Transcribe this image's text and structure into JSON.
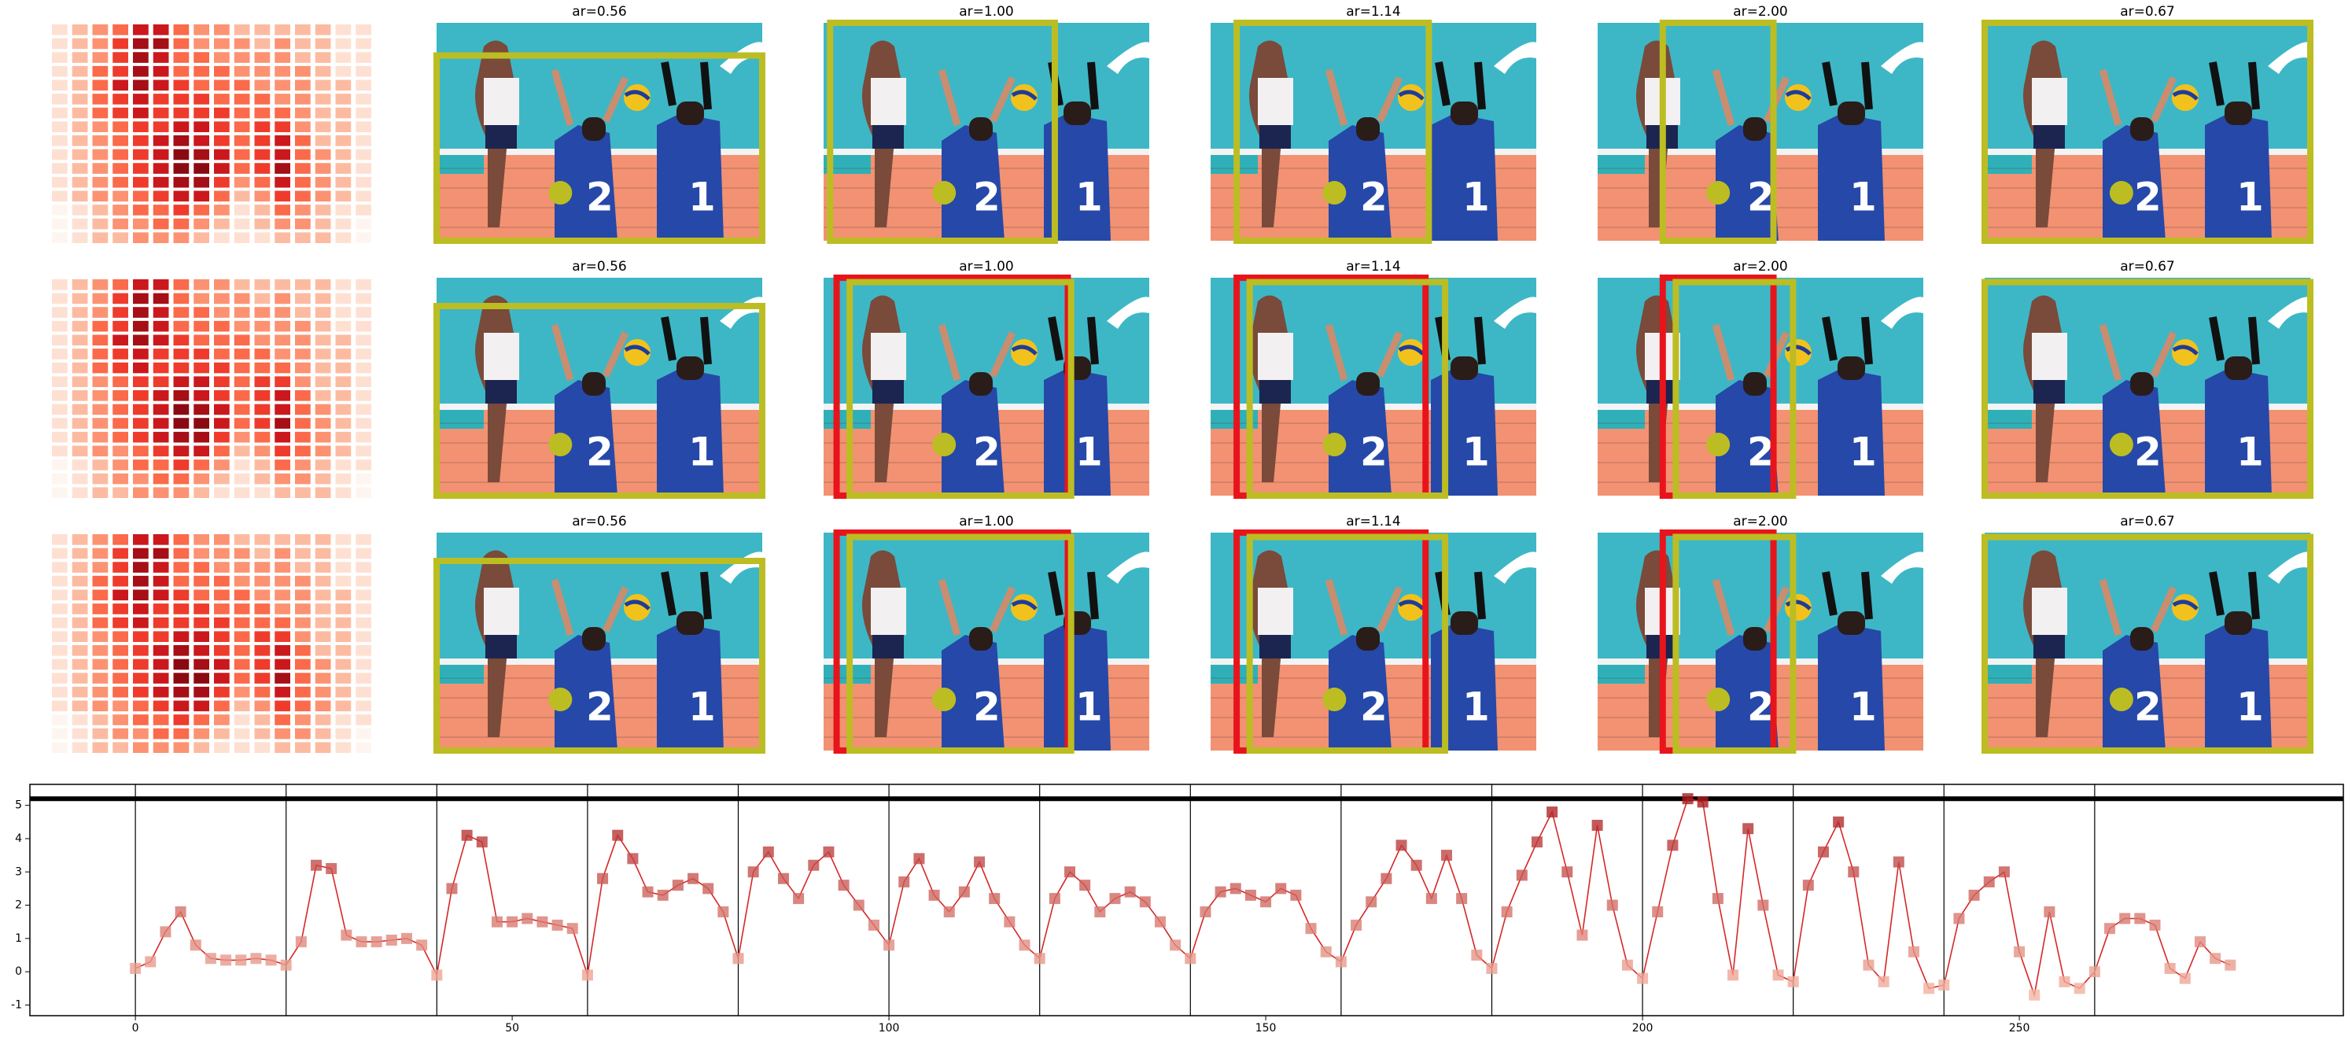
{
  "grid": {
    "titles": [
      [
        "ar=0.56",
        "ar=1.00",
        "ar=1.14",
        "ar=2.00",
        "ar=0.67"
      ],
      [
        "ar=0.56",
        "ar=1.00",
        "ar=1.14",
        "ar=2.00",
        "ar=0.67"
      ],
      [
        "ar=0.56",
        "ar=1.00",
        "ar=1.14",
        "ar=2.00",
        "ar=0.67"
      ]
    ],
    "heatmap_colors": [
      "#fff5f0",
      "#fee0d2",
      "#fcbba1",
      "#fc9272",
      "#fb6a4a",
      "#ef3b2c",
      "#cb181d",
      "#a50f15",
      "#8b0a12",
      "#67000d"
    ],
    "heatmap": [
      [
        1,
        2,
        3,
        4,
        6,
        6,
        4,
        3,
        3,
        2,
        2,
        2,
        2,
        2,
        1,
        1
      ],
      [
        1,
        2,
        3,
        5,
        7,
        7,
        4,
        3,
        3,
        3,
        2,
        3,
        2,
        2,
        1,
        1
      ],
      [
        1,
        2,
        3,
        5,
        7,
        6,
        4,
        4,
        3,
        3,
        3,
        3,
        2,
        2,
        1,
        1
      ],
      [
        1,
        2,
        4,
        5,
        7,
        6,
        4,
        4,
        4,
        3,
        3,
        3,
        3,
        2,
        1,
        1
      ],
      [
        1,
        2,
        4,
        6,
        7,
        6,
        5,
        4,
        4,
        4,
        3,
        3,
        3,
        2,
        2,
        1
      ],
      [
        1,
        2,
        4,
        5,
        6,
        5,
        5,
        5,
        4,
        4,
        4,
        3,
        3,
        2,
        2,
        1
      ],
      [
        1,
        2,
        4,
        5,
        6,
        5,
        5,
        5,
        5,
        4,
        4,
        4,
        3,
        2,
        2,
        1
      ],
      [
        1,
        2,
        3,
        4,
        5,
        5,
        6,
        6,
        5,
        4,
        5,
        5,
        3,
        2,
        2,
        1
      ],
      [
        1,
        2,
        3,
        4,
        5,
        6,
        7,
        6,
        5,
        4,
        5,
        6,
        4,
        2,
        2,
        1
      ],
      [
        1,
        2,
        3,
        4,
        5,
        6,
        8,
        7,
        6,
        4,
        5,
        6,
        4,
        3,
        2,
        1
      ],
      [
        1,
        2,
        3,
        4,
        5,
        6,
        8,
        8,
        6,
        4,
        5,
        7,
        4,
        3,
        2,
        1
      ],
      [
        1,
        2,
        3,
        4,
        5,
        6,
        7,
        7,
        5,
        3,
        4,
        6,
        4,
        3,
        2,
        1
      ],
      [
        1,
        2,
        3,
        3,
        4,
        5,
        6,
        6,
        4,
        2,
        3,
        5,
        4,
        3,
        2,
        1
      ],
      [
        0,
        1,
        2,
        3,
        4,
        4,
        5,
        4,
        3,
        1,
        2,
        4,
        3,
        2,
        1,
        1
      ],
      [
        0,
        1,
        2,
        3,
        3,
        4,
        4,
        3,
        2,
        1,
        2,
        3,
        3,
        2,
        1,
        0
      ],
      [
        0,
        1,
        2,
        2,
        3,
        3,
        3,
        2,
        1,
        1,
        1,
        2,
        2,
        2,
        1,
        0
      ]
    ]
  },
  "chart_data": {
    "type": "line",
    "x": [
      0,
      2,
      4,
      6,
      8,
      10,
      12,
      14,
      16,
      18,
      20,
      22,
      24,
      26,
      28,
      30,
      32,
      34,
      36,
      38,
      40,
      42,
      44,
      46,
      48,
      50,
      52,
      54,
      56,
      58,
      60,
      62,
      64,
      66,
      68,
      70,
      72,
      74,
      76,
      78,
      80,
      82,
      84,
      86,
      88,
      90,
      92,
      94,
      96,
      98,
      100,
      102,
      104,
      106,
      108,
      110,
      112,
      114,
      116,
      118,
      120,
      122,
      124,
      126,
      128,
      130,
      132,
      134,
      136,
      138,
      140,
      142,
      144,
      146,
      148,
      150,
      152,
      154,
      156,
      158,
      160,
      162,
      164,
      166,
      168,
      170,
      172,
      174,
      176,
      178,
      180,
      182,
      184,
      186,
      188,
      190,
      192,
      194,
      196,
      198,
      200,
      202,
      204,
      206,
      208,
      210,
      212,
      214,
      216,
      218,
      220,
      222,
      224,
      226,
      228,
      230,
      232,
      234,
      236,
      238,
      240,
      242,
      244,
      246,
      248,
      250,
      252,
      254,
      256,
      258,
      260,
      262,
      264,
      266,
      268,
      270,
      272,
      274,
      276,
      278
    ],
    "series": [
      {
        "color": "#d62728",
        "values": [
          0.1,
          0.3,
          1.2,
          1.8,
          0.8,
          0.4,
          0.35,
          0.35,
          0.4,
          0.35,
          0.2,
          0.9,
          3.2,
          3.1,
          1.1,
          0.9,
          0.9,
          0.95,
          1.0,
          0.8,
          -0.1,
          2.5,
          4.1,
          3.9,
          1.5,
          1.5,
          1.6,
          1.5,
          1.4,
          1.3,
          -0.1,
          2.8,
          4.1,
          3.4,
          2.4,
          2.3,
          2.6,
          2.8,
          2.5,
          1.8,
          0.4,
          3.0,
          3.6,
          2.8,
          2.2,
          3.2,
          3.6,
          2.6,
          2.0,
          1.4,
          0.8,
          2.7,
          3.4,
          2.3,
          1.8,
          2.4,
          3.3,
          2.2,
          1.5,
          0.8,
          0.4,
          2.2,
          3.0,
          2.6,
          1.8,
          2.2,
          2.4,
          2.1,
          1.5,
          0.8,
          0.4,
          1.8,
          2.4,
          2.5,
          2.3,
          2.1,
          2.5,
          2.3,
          1.3,
          0.6,
          0.3,
          1.4,
          2.1,
          2.8,
          3.8,
          3.2,
          2.2,
          3.5,
          2.2,
          0.5,
          0.1,
          1.8,
          2.9,
          3.9,
          4.8,
          3.0,
          1.1,
          4.4,
          2.0,
          0.2,
          -0.2,
          1.8,
          3.8,
          5.2,
          5.1,
          2.2,
          -0.1,
          4.3,
          2.0,
          -0.1,
          -0.3,
          2.6,
          3.6,
          4.5,
          3.0,
          0.2,
          -0.3,
          3.3,
          0.6,
          -0.5,
          -0.4,
          1.6,
          2.3,
          2.7,
          3.0,
          0.6,
          -0.7,
          1.8,
          -0.3,
          -0.5,
          0.0,
          1.3,
          1.6,
          1.6,
          1.4,
          0.1,
          -0.2,
          0.9,
          0.4,
          0.2
        ]
      }
    ],
    "marker_colors": [
      "#fcc5b0",
      "#a50f15"
    ],
    "xlim": [
      -14,
      293
    ],
    "ylim": [
      -1.32,
      5.63
    ],
    "xticks": [
      0,
      50,
      100,
      150,
      200,
      250
    ],
    "yticks": [
      -1,
      0,
      1,
      2,
      3,
      4,
      5
    ],
    "vlines": [
      0,
      20,
      40,
      60,
      80,
      100,
      120,
      140,
      160,
      180,
      200,
      220,
      240,
      260
    ],
    "hline": 5.2
  }
}
